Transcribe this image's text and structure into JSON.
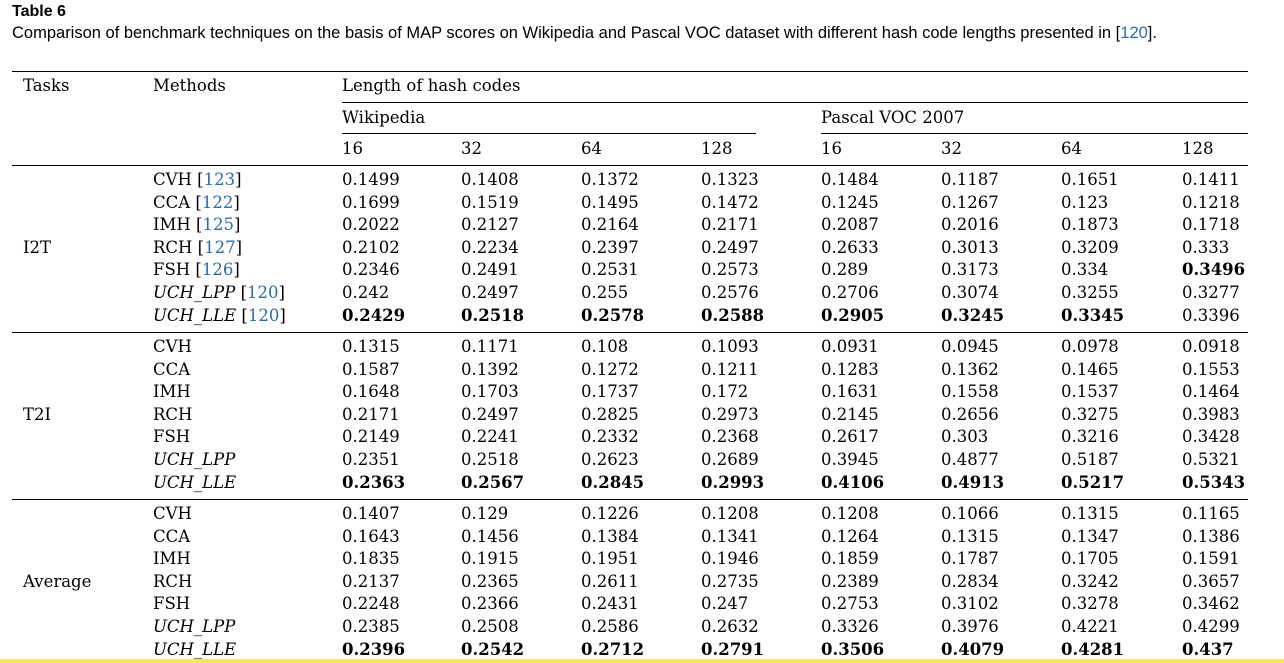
{
  "caption": {
    "title": "Table 6",
    "text_before": "Comparison of benchmark techniques on the basis of MAP scores on Wikipedia and Pascal VOC dataset with different hash code lengths presented in [",
    "ref": "120",
    "text_after": "]."
  },
  "header": {
    "tasks": "Tasks",
    "methods": "Methods",
    "length": "Length of hash codes",
    "datasets": [
      "Wikipedia",
      "Pascal VOC 2007"
    ],
    "bits": [
      "16",
      "32",
      "64",
      "128",
      "16",
      "32",
      "64",
      "128"
    ]
  },
  "groups": [
    {
      "task": "I2T",
      "rows": [
        {
          "method": "CVH",
          "ref": "123",
          "italic": false,
          "values": [
            "0.1499",
            "0.1408",
            "0.1372",
            "0.1323",
            "0.1484",
            "0.1187",
            "0.1651",
            "0.1411"
          ],
          "bold": []
        },
        {
          "method": "CCA",
          "ref": "122",
          "italic": false,
          "values": [
            "0.1699",
            "0.1519",
            "0.1495",
            "0.1472",
            "0.1245",
            "0.1267",
            "0.123",
            "0.1218"
          ],
          "bold": []
        },
        {
          "method": "IMH",
          "ref": "125",
          "italic": false,
          "values": [
            "0.2022",
            "0.2127",
            "0.2164",
            "0.2171",
            "0.2087",
            "0.2016",
            "0.1873",
            "0.1718"
          ],
          "bold": []
        },
        {
          "method": "RCH",
          "ref": "127",
          "italic": false,
          "values": [
            "0.2102",
            "0.2234",
            "0.2397",
            "0.2497",
            "0.2633",
            "0.3013",
            "0.3209",
            "0.333"
          ],
          "bold": []
        },
        {
          "method": "FSH",
          "ref": "126",
          "italic": false,
          "values": [
            "0.2346",
            "0.2491",
            "0.2531",
            "0.2573",
            "0.289",
            "0.3173",
            "0.334",
            "0.3496"
          ],
          "bold": [
            7
          ]
        },
        {
          "method": "UCH_LPP",
          "ref": "120",
          "italic": true,
          "values": [
            "0.242",
            "0.2497",
            "0.255",
            "0.2576",
            "0.2706",
            "0.3074",
            "0.3255",
            "0.3277"
          ],
          "bold": []
        },
        {
          "method": "UCH_LLE",
          "ref": "120",
          "italic": true,
          "values": [
            "0.2429",
            "0.2518",
            "0.2578",
            "0.2588",
            "0.2905",
            "0.3245",
            "0.3345",
            "0.3396"
          ],
          "bold": [
            0,
            1,
            2,
            3,
            4,
            5,
            6
          ]
        }
      ]
    },
    {
      "task": "T2I",
      "rows": [
        {
          "method": "CVH",
          "ref": "",
          "italic": false,
          "values": [
            "0.1315",
            "0.1171",
            "0.108",
            "0.1093",
            "0.0931",
            "0.0945",
            "0.0978",
            "0.0918"
          ],
          "bold": []
        },
        {
          "method": "CCA",
          "ref": "",
          "italic": false,
          "values": [
            "0.1587",
            "0.1392",
            "0.1272",
            "0.1211",
            "0.1283",
            "0.1362",
            "0.1465",
            "0.1553"
          ],
          "bold": []
        },
        {
          "method": "IMH",
          "ref": "",
          "italic": false,
          "values": [
            "0.1648",
            "0.1703",
            "0.1737",
            "0.172",
            "0.1631",
            "0.1558",
            "0.1537",
            "0.1464"
          ],
          "bold": []
        },
        {
          "method": "RCH",
          "ref": "",
          "italic": false,
          "values": [
            "0.2171",
            "0.2497",
            "0.2825",
            "0.2973",
            "0.2145",
            "0.2656",
            "0.3275",
            "0.3983"
          ],
          "bold": []
        },
        {
          "method": "FSH",
          "ref": "",
          "italic": false,
          "values": [
            "0.2149",
            "0.2241",
            "0.2332",
            "0.2368",
            "0.2617",
            "0.303",
            "0.3216",
            "0.3428"
          ],
          "bold": []
        },
        {
          "method": "UCH_LPP",
          "ref": "",
          "italic": true,
          "values": [
            "0.2351",
            "0.2518",
            "0.2623",
            "0.2689",
            "0.3945",
            "0.4877",
            "0.5187",
            "0.5321"
          ],
          "bold": []
        },
        {
          "method": "UCH_LLE",
          "ref": "",
          "italic": true,
          "values": [
            "0.2363",
            "0.2567",
            "0.2845",
            "0.2993",
            "0.4106",
            "0.4913",
            "0.5217",
            "0.5343"
          ],
          "bold": [
            0,
            1,
            2,
            3,
            4,
            5,
            6,
            7
          ]
        }
      ]
    },
    {
      "task": "Average",
      "rows": [
        {
          "method": "CVH",
          "ref": "",
          "italic": false,
          "values": [
            "0.1407",
            "0.129",
            "0.1226",
            "0.1208",
            "0.1208",
            "0.1066",
            "0.1315",
            "0.1165"
          ],
          "bold": []
        },
        {
          "method": "CCA",
          "ref": "",
          "italic": false,
          "values": [
            "0.1643",
            "0.1456",
            "0.1384",
            "0.1341",
            "0.1264",
            "0.1315",
            "0.1347",
            "0.1386"
          ],
          "bold": []
        },
        {
          "method": "IMH",
          "ref": "",
          "italic": false,
          "values": [
            "0.1835",
            "0.1915",
            "0.1951",
            "0.1946",
            "0.1859",
            "0.1787",
            "0.1705",
            "0.1591"
          ],
          "bold": []
        },
        {
          "method": "RCH",
          "ref": "",
          "italic": false,
          "values": [
            "0.2137",
            "0.2365",
            "0.2611",
            "0.2735",
            "0.2389",
            "0.2834",
            "0.3242",
            "0.3657"
          ],
          "bold": []
        },
        {
          "method": "FSH",
          "ref": "",
          "italic": false,
          "values": [
            "0.2248",
            "0.2366",
            "0.2431",
            "0.247",
            "0.2753",
            "0.3102",
            "0.3278",
            "0.3462"
          ],
          "bold": []
        },
        {
          "method": "UCH_LPP",
          "ref": "",
          "italic": true,
          "values": [
            "0.2385",
            "0.2508",
            "0.2586",
            "0.2632",
            "0.3326",
            "0.3976",
            "0.4221",
            "0.4299"
          ],
          "bold": []
        },
        {
          "method": "UCH_LLE",
          "ref": "",
          "italic": true,
          "values": [
            "0.2396",
            "0.2542",
            "0.2712",
            "0.2791",
            "0.3506",
            "0.4079",
            "0.4281",
            "0.437"
          ],
          "bold": [
            0,
            1,
            2,
            3,
            4,
            5,
            6,
            7
          ]
        }
      ]
    }
  ]
}
